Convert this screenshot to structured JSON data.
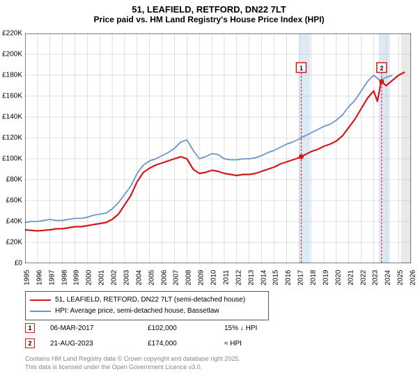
{
  "title": {
    "line1": "51, LEAFIELD, RETFORD, DN22 7LT",
    "line2": "Price paid vs. HM Land Registry's House Price Index (HPI)"
  },
  "chart": {
    "type": "line",
    "background_color": "#ffffff",
    "grid_color": "#bfbfbf",
    "grid_stroke": 0.5,
    "axis_color": "#000000",
    "label_fontsize": 10,
    "ylim": [
      0,
      220000
    ],
    "ytick_step": 20000,
    "yticks": [
      "£0",
      "£20K",
      "£40K",
      "£60K",
      "£80K",
      "£100K",
      "£120K",
      "£140K",
      "£160K",
      "£180K",
      "£200K",
      "£220K"
    ],
    "xlim": [
      1995,
      2026
    ],
    "xticks": [
      1995,
      1996,
      1997,
      1998,
      1999,
      2000,
      2001,
      2002,
      2003,
      2004,
      2005,
      2006,
      2007,
      2008,
      2009,
      2010,
      2011,
      2012,
      2013,
      2014,
      2015,
      2016,
      2017,
      2018,
      2019,
      2020,
      2021,
      2022,
      2023,
      2024,
      2025,
      2026
    ],
    "highlight_bands": [
      {
        "x_start": 2017.0,
        "x_end": 2017.9,
        "color": "#d7e6f4",
        "opacity": 0.85
      },
      {
        "x_start": 2023.4,
        "x_end": 2024.3,
        "color": "#d7e6f4",
        "opacity": 0.85
      },
      {
        "x_start": 2025.2,
        "x_end": 2026.0,
        "color": "#e5e5e5",
        "opacity": 0.85
      }
    ],
    "series": [
      {
        "name": "price_paid",
        "label": "51, LEAFIELD, RETFORD, DN22 7LT (semi-detached house)",
        "color": "#d4171a",
        "line_width": 2.2,
        "data": [
          [
            1995.0,
            32000
          ],
          [
            1995.5,
            31500
          ],
          [
            1996.0,
            31000
          ],
          [
            1996.5,
            31500
          ],
          [
            1997.0,
            32000
          ],
          [
            1997.5,
            33000
          ],
          [
            1998.0,
            33000
          ],
          [
            1998.5,
            34000
          ],
          [
            1999.0,
            35000
          ],
          [
            1999.5,
            35000
          ],
          [
            2000.0,
            36000
          ],
          [
            2000.5,
            37000
          ],
          [
            2001.0,
            38000
          ],
          [
            2001.5,
            39000
          ],
          [
            2002.0,
            42000
          ],
          [
            2002.5,
            47000
          ],
          [
            2003.0,
            56000
          ],
          [
            2003.5,
            65000
          ],
          [
            2004.0,
            78000
          ],
          [
            2004.5,
            87000
          ],
          [
            2005.0,
            91000
          ],
          [
            2005.5,
            94000
          ],
          [
            2006.0,
            96000
          ],
          [
            2006.5,
            98000
          ],
          [
            2007.0,
            100000
          ],
          [
            2007.5,
            102000
          ],
          [
            2008.0,
            100000
          ],
          [
            2008.5,
            90000
          ],
          [
            2009.0,
            86000
          ],
          [
            2009.5,
            87000
          ],
          [
            2010.0,
            89000
          ],
          [
            2010.5,
            88000
          ],
          [
            2011.0,
            86000
          ],
          [
            2011.5,
            85000
          ],
          [
            2012.0,
            84000
          ],
          [
            2012.5,
            85000
          ],
          [
            2013.0,
            85000
          ],
          [
            2013.5,
            86000
          ],
          [
            2014.0,
            88000
          ],
          [
            2014.5,
            90000
          ],
          [
            2015.0,
            92000
          ],
          [
            2015.5,
            95000
          ],
          [
            2016.0,
            97000
          ],
          [
            2016.5,
            99000
          ],
          [
            2017.0,
            101000
          ],
          [
            2017.2,
            102000
          ],
          [
            2017.5,
            104000
          ],
          [
            2018.0,
            107000
          ],
          [
            2018.5,
            109000
          ],
          [
            2019.0,
            112000
          ],
          [
            2019.5,
            114000
          ],
          [
            2020.0,
            117000
          ],
          [
            2020.5,
            122000
          ],
          [
            2021.0,
            130000
          ],
          [
            2021.5,
            138000
          ],
          [
            2022.0,
            148000
          ],
          [
            2022.5,
            158000
          ],
          [
            2023.0,
            165000
          ],
          [
            2023.3,
            155000
          ],
          [
            2023.6,
            174000
          ],
          [
            2024.0,
            170000
          ],
          [
            2024.5,
            175000
          ],
          [
            2025.0,
            180000
          ],
          [
            2025.5,
            183000
          ]
        ]
      },
      {
        "name": "hpi",
        "label": "HPI: Average price, semi-detached house, Bassetlaw",
        "color": "#6a96c8",
        "line_width": 1.8,
        "data": [
          [
            1995.0,
            39000
          ],
          [
            1995.5,
            40000
          ],
          [
            1996.0,
            40000
          ],
          [
            1996.5,
            41000
          ],
          [
            1997.0,
            42000
          ],
          [
            1997.5,
            41000
          ],
          [
            1998.0,
            41000
          ],
          [
            1998.5,
            42000
          ],
          [
            1999.0,
            43000
          ],
          [
            1999.5,
            43000
          ],
          [
            2000.0,
            44000
          ],
          [
            2000.5,
            46000
          ],
          [
            2001.0,
            47000
          ],
          [
            2001.5,
            48000
          ],
          [
            2002.0,
            52000
          ],
          [
            2002.5,
            58000
          ],
          [
            2003.0,
            66000
          ],
          [
            2003.5,
            74000
          ],
          [
            2004.0,
            86000
          ],
          [
            2004.5,
            94000
          ],
          [
            2005.0,
            98000
          ],
          [
            2005.5,
            100000
          ],
          [
            2006.0,
            103000
          ],
          [
            2006.5,
            106000
          ],
          [
            2007.0,
            110000
          ],
          [
            2007.5,
            116000
          ],
          [
            2008.0,
            118000
          ],
          [
            2008.5,
            108000
          ],
          [
            2009.0,
            100000
          ],
          [
            2009.5,
            102000
          ],
          [
            2010.0,
            105000
          ],
          [
            2010.5,
            104000
          ],
          [
            2011.0,
            100000
          ],
          [
            2011.5,
            99000
          ],
          [
            2012.0,
            99000
          ],
          [
            2012.5,
            100000
          ],
          [
            2013.0,
            100000
          ],
          [
            2013.5,
            101000
          ],
          [
            2014.0,
            103000
          ],
          [
            2014.5,
            106000
          ],
          [
            2015.0,
            108000
          ],
          [
            2015.5,
            111000
          ],
          [
            2016.0,
            114000
          ],
          [
            2016.5,
            116000
          ],
          [
            2017.0,
            119000
          ],
          [
            2017.5,
            122000
          ],
          [
            2018.0,
            125000
          ],
          [
            2018.5,
            128000
          ],
          [
            2019.0,
            131000
          ],
          [
            2019.5,
            133000
          ],
          [
            2020.0,
            137000
          ],
          [
            2020.5,
            142000
          ],
          [
            2021.0,
            150000
          ],
          [
            2021.5,
            156000
          ],
          [
            2022.0,
            165000
          ],
          [
            2022.5,
            174000
          ],
          [
            2023.0,
            180000
          ],
          [
            2023.5,
            175000
          ],
          [
            2024.0,
            178000
          ],
          [
            2024.5,
            180000
          ]
        ]
      }
    ],
    "markers": [
      {
        "label": "1",
        "x": 2017.18,
        "y_top": 220000,
        "y_box": 192000,
        "color": "#d4171a"
      },
      {
        "label": "2",
        "x": 2023.64,
        "y_top": 220000,
        "y_box": 192000,
        "color": "#d4171a"
      }
    ],
    "sale_points": [
      {
        "x": 2017.18,
        "y": 102000,
        "color": "#d4171a"
      },
      {
        "x": 2023.64,
        "y": 174000,
        "color": "#d4171a"
      }
    ]
  },
  "legend": {
    "rows": [
      {
        "color": "#d4171a",
        "width": 2.5,
        "label": "51, LEAFIELD, RETFORD, DN22 7LT (semi-detached house)"
      },
      {
        "color": "#6a96c8",
        "width": 2,
        "label": "HPI: Average price, semi-detached house, Bassetlaw"
      }
    ]
  },
  "sales": [
    {
      "num": "1",
      "color": "#d4171a",
      "date": "06-MAR-2017",
      "price": "£102,000",
      "vs_hpi": "15% ↓ HPI"
    },
    {
      "num": "2",
      "color": "#d4171a",
      "date": "21-AUG-2023",
      "price": "£174,000",
      "vs_hpi": "≈ HPI"
    }
  ],
  "attribution": {
    "line1": "Contains HM Land Registry data © Crown copyright and database right 2025.",
    "line2": "This data is licensed under the Open Government Licence v3.0."
  }
}
